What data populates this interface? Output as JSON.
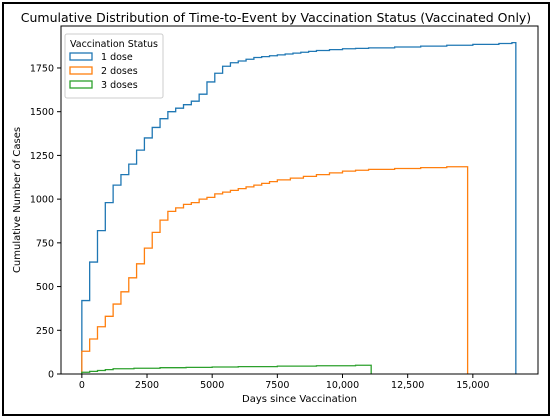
{
  "chart_data": {
    "type": "line",
    "step": true,
    "title": "Cumulative Distribution of Time-to-Event by Vaccination Status (Vaccinated Only)",
    "xlabel": "Days since Vaccination",
    "ylabel": "Cumulative Number of Cases",
    "xlim": [
      -800,
      17500
    ],
    "ylim": [
      0,
      1990
    ],
    "xticks": [
      0,
      2500,
      5000,
      7500,
      10000,
      12500,
      15000
    ],
    "xtick_labels": [
      "0",
      "2500",
      "5000",
      "7500",
      "10,000",
      "12,500",
      "15,000"
    ],
    "yticks": [
      0,
      250,
      500,
      750,
      1000,
      1250,
      1500,
      1750
    ],
    "ytick_labels": [
      "0",
      "250",
      "500",
      "750",
      "1000",
      "1250",
      "1500",
      "1750"
    ],
    "legend": {
      "title": "Vaccination Status",
      "placement": "top-left"
    },
    "series": [
      {
        "name": "1 dose",
        "color": "#1f77b4",
        "x": [
          0,
          0,
          300,
          600,
          900,
          1200,
          1500,
          1800,
          2100,
          2400,
          2700,
          3000,
          3300,
          3600,
          3900,
          4200,
          4500,
          4800,
          5100,
          5400,
          5700,
          6000,
          6300,
          6600,
          6900,
          7200,
          7500,
          7800,
          8100,
          8400,
          8700,
          9000,
          9500,
          10000,
          10500,
          11000,
          12000,
          13000,
          14000,
          15000,
          16000,
          16500,
          16650,
          16650
        ],
        "y": [
          0,
          420,
          640,
          820,
          980,
          1080,
          1140,
          1200,
          1280,
          1350,
          1410,
          1460,
          1500,
          1520,
          1540,
          1560,
          1600,
          1670,
          1720,
          1760,
          1780,
          1790,
          1800,
          1810,
          1815,
          1820,
          1825,
          1830,
          1835,
          1840,
          1845,
          1850,
          1855,
          1860,
          1862,
          1865,
          1870,
          1875,
          1880,
          1885,
          1890,
          1895,
          1895,
          0
        ]
      },
      {
        "name": "2 doses",
        "color": "#ff7f0e",
        "x": [
          0,
          0,
          300,
          600,
          900,
          1200,
          1500,
          1800,
          2100,
          2400,
          2700,
          3000,
          3300,
          3600,
          3900,
          4200,
          4500,
          4800,
          5100,
          5400,
          5700,
          6000,
          6300,
          6600,
          6900,
          7200,
          7500,
          8000,
          8500,
          9000,
          9500,
          10000,
          10500,
          11000,
          12000,
          13000,
          14000,
          14800,
          14800
        ],
        "y": [
          0,
          130,
          200,
          270,
          330,
          400,
          470,
          550,
          630,
          720,
          810,
          880,
          930,
          950,
          970,
          980,
          1000,
          1010,
          1030,
          1040,
          1050,
          1060,
          1070,
          1080,
          1090,
          1100,
          1110,
          1120,
          1130,
          1140,
          1150,
          1160,
          1165,
          1170,
          1175,
          1180,
          1185,
          1185,
          0
        ]
      },
      {
        "name": "3 doses",
        "color": "#2ca02c",
        "x": [
          0,
          0,
          300,
          600,
          900,
          1200,
          2000,
          3000,
          4000,
          5000,
          6000,
          7500,
          9000,
          10500,
          11100,
          11100
        ],
        "y": [
          0,
          10,
          15,
          20,
          25,
          30,
          33,
          36,
          38,
          40,
          42,
          45,
          47,
          50,
          50,
          0
        ]
      }
    ]
  }
}
